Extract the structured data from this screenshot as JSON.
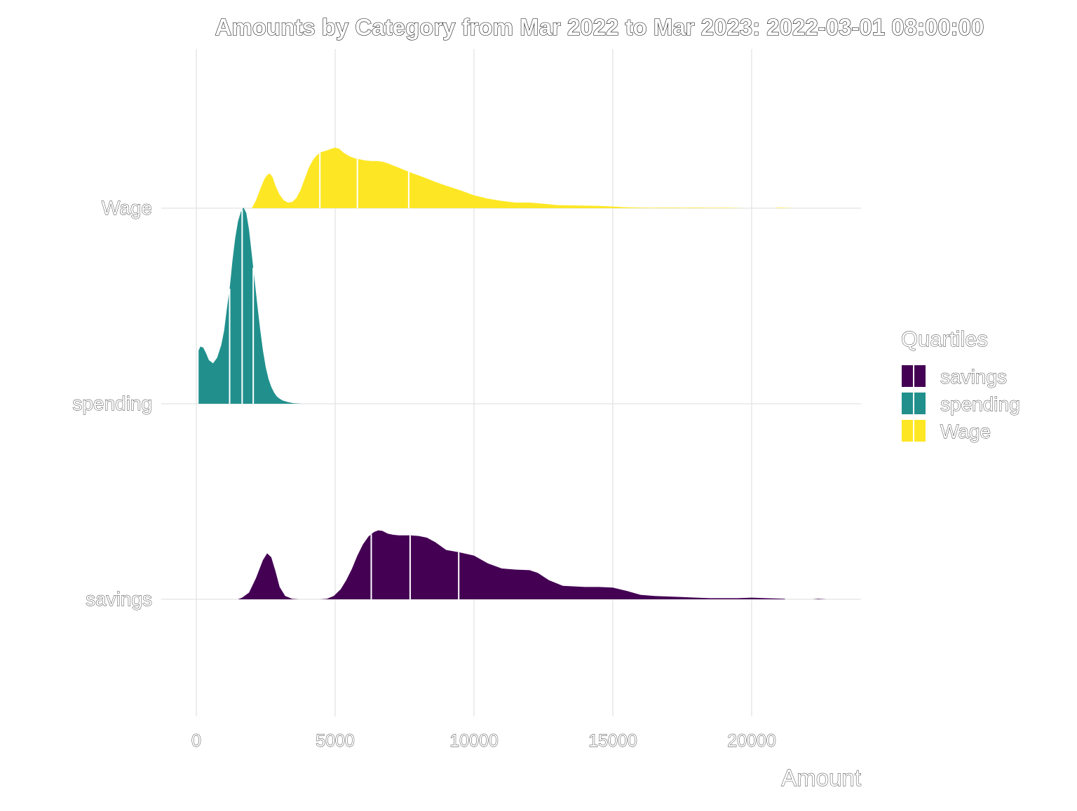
{
  "chart_data": {
    "type": "ridgeline",
    "title": "Amounts by Category from Mar 2022 to Mar 2023: 2022-03-01 08:00:00",
    "xlabel": "Amount",
    "ylabel": "",
    "xlim": [
      -300,
      24000
    ],
    "x_ticks": [
      0,
      5000,
      10000,
      15000,
      20000
    ],
    "x_tick_labels": [
      "0",
      "5000",
      "10000",
      "15000",
      "20000"
    ],
    "grid": true,
    "legend": {
      "title": "Quartiles",
      "placement": "right",
      "entries": [
        "savings",
        "spending",
        "Wage"
      ]
    },
    "series": [
      {
        "name": "savings",
        "color": "#440154",
        "quartiles": [
          6300,
          7700,
          9450
        ],
        "segments": [
          {
            "x": [
              1500,
              1650,
              1900,
              2150,
              2400,
              2550,
              2700,
              2850,
              3000,
              3200,
              3450,
              3700
            ],
            "y": [
              0,
              0.03,
              0.12,
              0.38,
              0.7,
              0.82,
              0.75,
              0.5,
              0.22,
              0.06,
              0.01,
              0
            ]
          },
          {
            "x": [
              4450,
              4700,
              4950,
              5200,
              5400,
              5600,
              5800,
              6000,
              6200,
              6400,
              6550,
              6700,
              6900,
              7100,
              7300,
              7700,
              8000,
              8300,
              8600,
              9000,
              9450,
              10000,
              10500,
              11000,
              11500,
              12000,
              12300,
              12700,
              13200,
              14000,
              14500,
              15000,
              15500,
              16000,
              16500,
              17000,
              17500,
              18000,
              18500,
              19000,
              19500,
              20000,
              20500,
              21200
            ],
            "y": [
              0,
              0.01,
              0.06,
              0.18,
              0.34,
              0.54,
              0.78,
              0.98,
              1.12,
              1.2,
              1.23,
              1.22,
              1.17,
              1.15,
              1.14,
              1.14,
              1.13,
              1.1,
              1.02,
              0.88,
              0.84,
              0.78,
              0.64,
              0.55,
              0.53,
              0.52,
              0.47,
              0.34,
              0.24,
              0.22,
              0.22,
              0.21,
              0.15,
              0.08,
              0.06,
              0.05,
              0.04,
              0.03,
              0.02,
              0.02,
              0.02,
              0.03,
              0.02,
              0.01
            ]
          },
          {
            "x": [
              22200,
              22400,
              22700
            ],
            "y": [
              0,
              0.01,
              0
            ]
          }
        ]
      },
      {
        "name": "spending",
        "color": "#21908d",
        "quartiles": [
          1200,
          1650,
          2050
        ],
        "segments": [
          {
            "x": [
              80,
              150,
              250,
              350,
              450,
              600,
              750,
              900,
              1000,
              1100,
              1200,
              1300,
              1400,
              1500,
              1600,
              1700,
              1800,
              1900,
              2000,
              2100,
              2200,
              2300,
              2400,
              2500,
              2600,
              2700,
              2800,
              2900,
              3000,
              3100,
              3300,
              3500,
              3800
            ],
            "y": [
              0.95,
              1.02,
              1.0,
              0.9,
              0.78,
              0.72,
              0.82,
              1.05,
              1.3,
              1.7,
              2.05,
              2.55,
              2.95,
              3.25,
              3.42,
              3.5,
              3.4,
              3.1,
              2.65,
              2.2,
              1.75,
              1.32,
              0.95,
              0.65,
              0.44,
              0.3,
              0.2,
              0.13,
              0.09,
              0.06,
              0.03,
              0.01,
              0
            ]
          }
        ]
      },
      {
        "name": "Wage",
        "color": "#fde725",
        "quartiles": [
          4450,
          5800,
          7650
        ],
        "segments": [
          {
            "x": [
              2000,
              2150,
              2300,
              2450,
              2550,
              2650,
              2750,
              2850,
              3000,
              3150,
              3300,
              3450,
              3600,
              3750,
              3900,
              4050,
              4200,
              4350,
              4500,
              4700,
              4850,
              5000,
              5150,
              5300,
              5500,
              5700,
              5900,
              6100,
              6300,
              6500,
              6700,
              6900,
              7100,
              7300,
              7500,
              7800,
              8200,
              8600,
              9000,
              9500,
              10000,
              10500,
              11000,
              11500,
              12000,
              12500,
              13000,
              13500,
              14000,
              14500,
              15000,
              15500,
              16000,
              16500,
              17000,
              17500,
              18000,
              18500,
              19000,
              19500,
              19700
            ],
            "y": [
              0,
              0.14,
              0.34,
              0.52,
              0.59,
              0.62,
              0.55,
              0.4,
              0.24,
              0.14,
              0.1,
              0.11,
              0.18,
              0.32,
              0.52,
              0.72,
              0.86,
              0.95,
              1.0,
              1.03,
              1.06,
              1.08,
              1.06,
              0.99,
              0.93,
              0.89,
              0.87,
              0.85,
              0.84,
              0.84,
              0.83,
              0.8,
              0.76,
              0.72,
              0.68,
              0.62,
              0.55,
              0.47,
              0.4,
              0.32,
              0.23,
              0.17,
              0.13,
              0.1,
              0.1,
              0.08,
              0.055,
              0.05,
              0.045,
              0.04,
              0.03,
              0.015,
              0.01,
              0.008,
              0.01,
              0.007,
              0.01,
              0.006,
              0.008,
              0.004,
              0
            ]
          },
          {
            "x": [
              20800,
              21000,
              21500
            ],
            "y": [
              0,
              0.01,
              0
            ]
          }
        ]
      }
    ]
  }
}
